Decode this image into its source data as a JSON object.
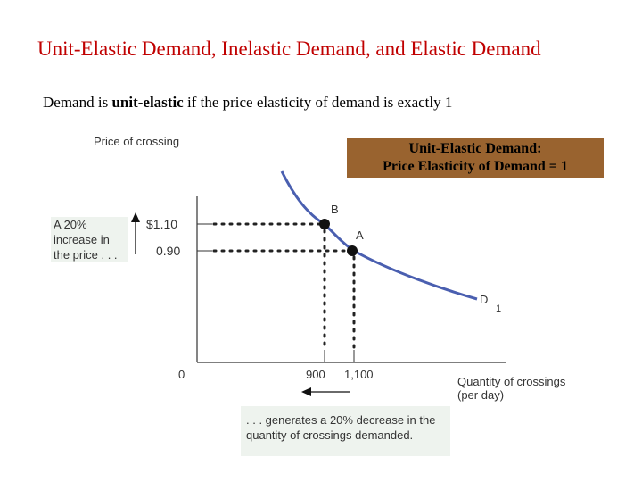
{
  "title": "Unit-Elastic Demand, Inelastic Demand, and Elastic Demand",
  "subtitle": {
    "prefix": "Demand is ",
    "emphasis": "unit-elastic",
    "suffix": " if the price  elasticity of demand is exactly 1"
  },
  "banner": {
    "line1": "Unit-Elastic Demand:",
    "line2": "Price Elasticity of Demand = 1"
  },
  "axes": {
    "y_label": "Price of crossing",
    "x_label_line1": "Quantity of crossings",
    "x_label_line2": "(per day)",
    "origin": "0"
  },
  "prices": {
    "high": "$1.10",
    "low": "0.90"
  },
  "quantities": {
    "low": "900",
    "high": "1,100"
  },
  "points": {
    "b": "B",
    "a": "A"
  },
  "curve": {
    "label": "D",
    "subscript": "1"
  },
  "notes": {
    "left": "A 20% increase in the price . . .",
    "bottom": ". . . generates a 20% decrease in the quantity of crossings demanded."
  },
  "colors": {
    "title": "#c00000",
    "banner": "#99632f",
    "curve": "#4a5fb0",
    "note_bg": "#eef3ee"
  }
}
